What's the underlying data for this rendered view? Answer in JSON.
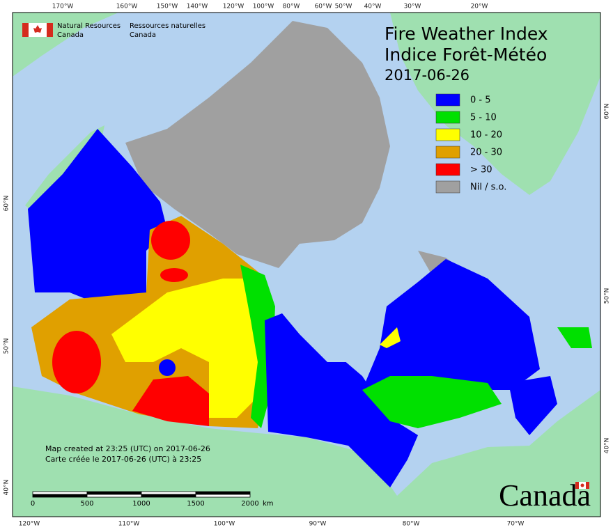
{
  "header": {
    "org_en": [
      "Natural Resources",
      "Canada"
    ],
    "org_fr": [
      "Ressources naturelles",
      "Canada"
    ]
  },
  "title": {
    "line1": "Fire Weather Index",
    "line2": "Indice Forêt-Météo",
    "date": "2017-06-26"
  },
  "legend": {
    "items": [
      {
        "label": "0 - 5",
        "color": "#0000ff"
      },
      {
        "label": "5 - 10",
        "color": "#00e000"
      },
      {
        "label": "10 - 20",
        "color": "#ffff00"
      },
      {
        "label": "20 - 30",
        "color": "#e0a000"
      },
      {
        "label": "> 30",
        "color": "#ff0000"
      },
      {
        "label": "Nil / s.o.",
        "color": "#a0a0a0"
      }
    ]
  },
  "graticule": {
    "top": [
      "170°W",
      "160°W",
      "150°W",
      "140°W",
      "120°W",
      "100°W",
      "80°W",
      "60°W",
      "50°W",
      "40°W",
      "30°W",
      "20°W"
    ],
    "bottom": [
      "120°W",
      "110°W",
      "100°W",
      "90°W",
      "80°W",
      "70°W"
    ],
    "left": [
      "60°N",
      "50°N",
      "40°N"
    ],
    "right": [
      "60°N",
      "50°N",
      "40°N"
    ]
  },
  "credits": {
    "en": "Map created at 23:25 (UTC) on 2017-06-26",
    "fr": "Carte créée le 2017-06-26 (UTC) à 23:25"
  },
  "scale_bar": {
    "labels": [
      "0",
      "500",
      "1000",
      "1500",
      "2000"
    ],
    "unit": "km"
  },
  "wordmark": "Canada"
}
